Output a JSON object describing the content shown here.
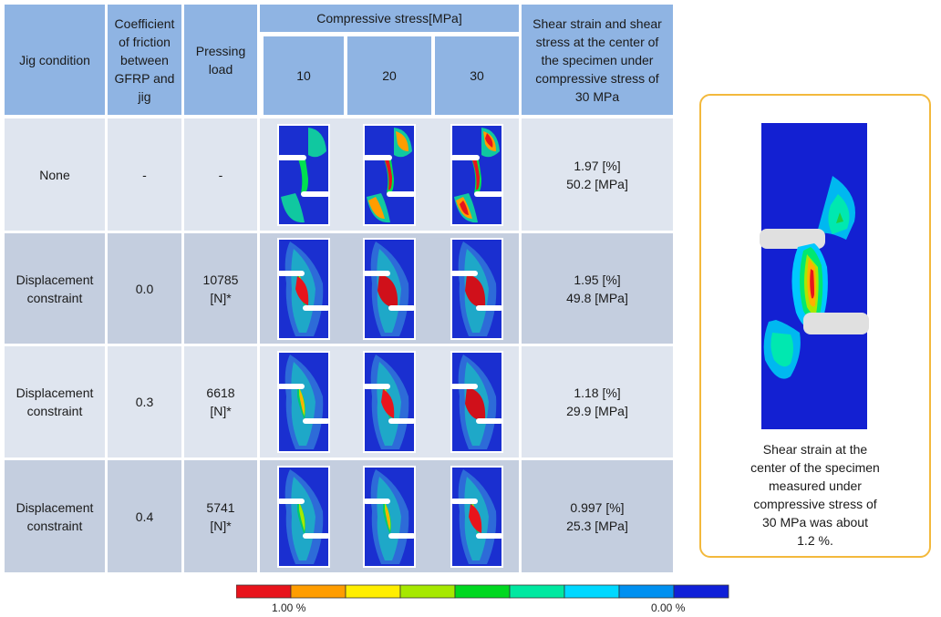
{
  "headers": {
    "jig_condition": "Jig condition",
    "coefficient": "Coefficient\nof friction\nbetween\nGFRP and\njig",
    "pressing_load": "Pressing\nload",
    "compressive_stress": "Compressive stress[MPa]",
    "stress_levels": [
      "10",
      "20",
      "30"
    ],
    "shear": "Shear strain and shear\nstress at the center of\nthe specimen under\ncompressive stress of\n30 MPa"
  },
  "rows": [
    {
      "condition": "None",
      "coefficient": "-",
      "load": "-",
      "strain": "1.97 [%]",
      "stress": "50.2 [MPa]"
    },
    {
      "condition": "Displacement\nconstraint",
      "coefficient": "0.0",
      "load": "10785\n[N]*",
      "strain": "1.95 [%]",
      "stress": "49.8 [MPa]"
    },
    {
      "condition": "Displacement\nconstraint",
      "coefficient": "0.3",
      "load": "6618\n[N]*",
      "strain": "1.18 [%]",
      "stress": "29.9 [MPa]"
    },
    {
      "condition": "Displacement\nconstraint",
      "coefficient": "0.4",
      "load": "5741\n[N]*",
      "strain": "0.997 [%]",
      "stress": "25.3 [MPa]"
    }
  ],
  "legend": {
    "max_label": "1.00 %",
    "min_label": "0.00 %",
    "colors": [
      "#e8141c",
      "#ff9d00",
      "#ffee00",
      "#a6e800",
      "#00d820",
      "#00e8a0",
      "#00d8ff",
      "#0090f0",
      "#1020d8"
    ]
  },
  "note": {
    "text": "Shear strain at the\ncenter of the specimen\nmeasured under\ncompressive stress of\n30 MPa was about\n1.2 %."
  }
}
